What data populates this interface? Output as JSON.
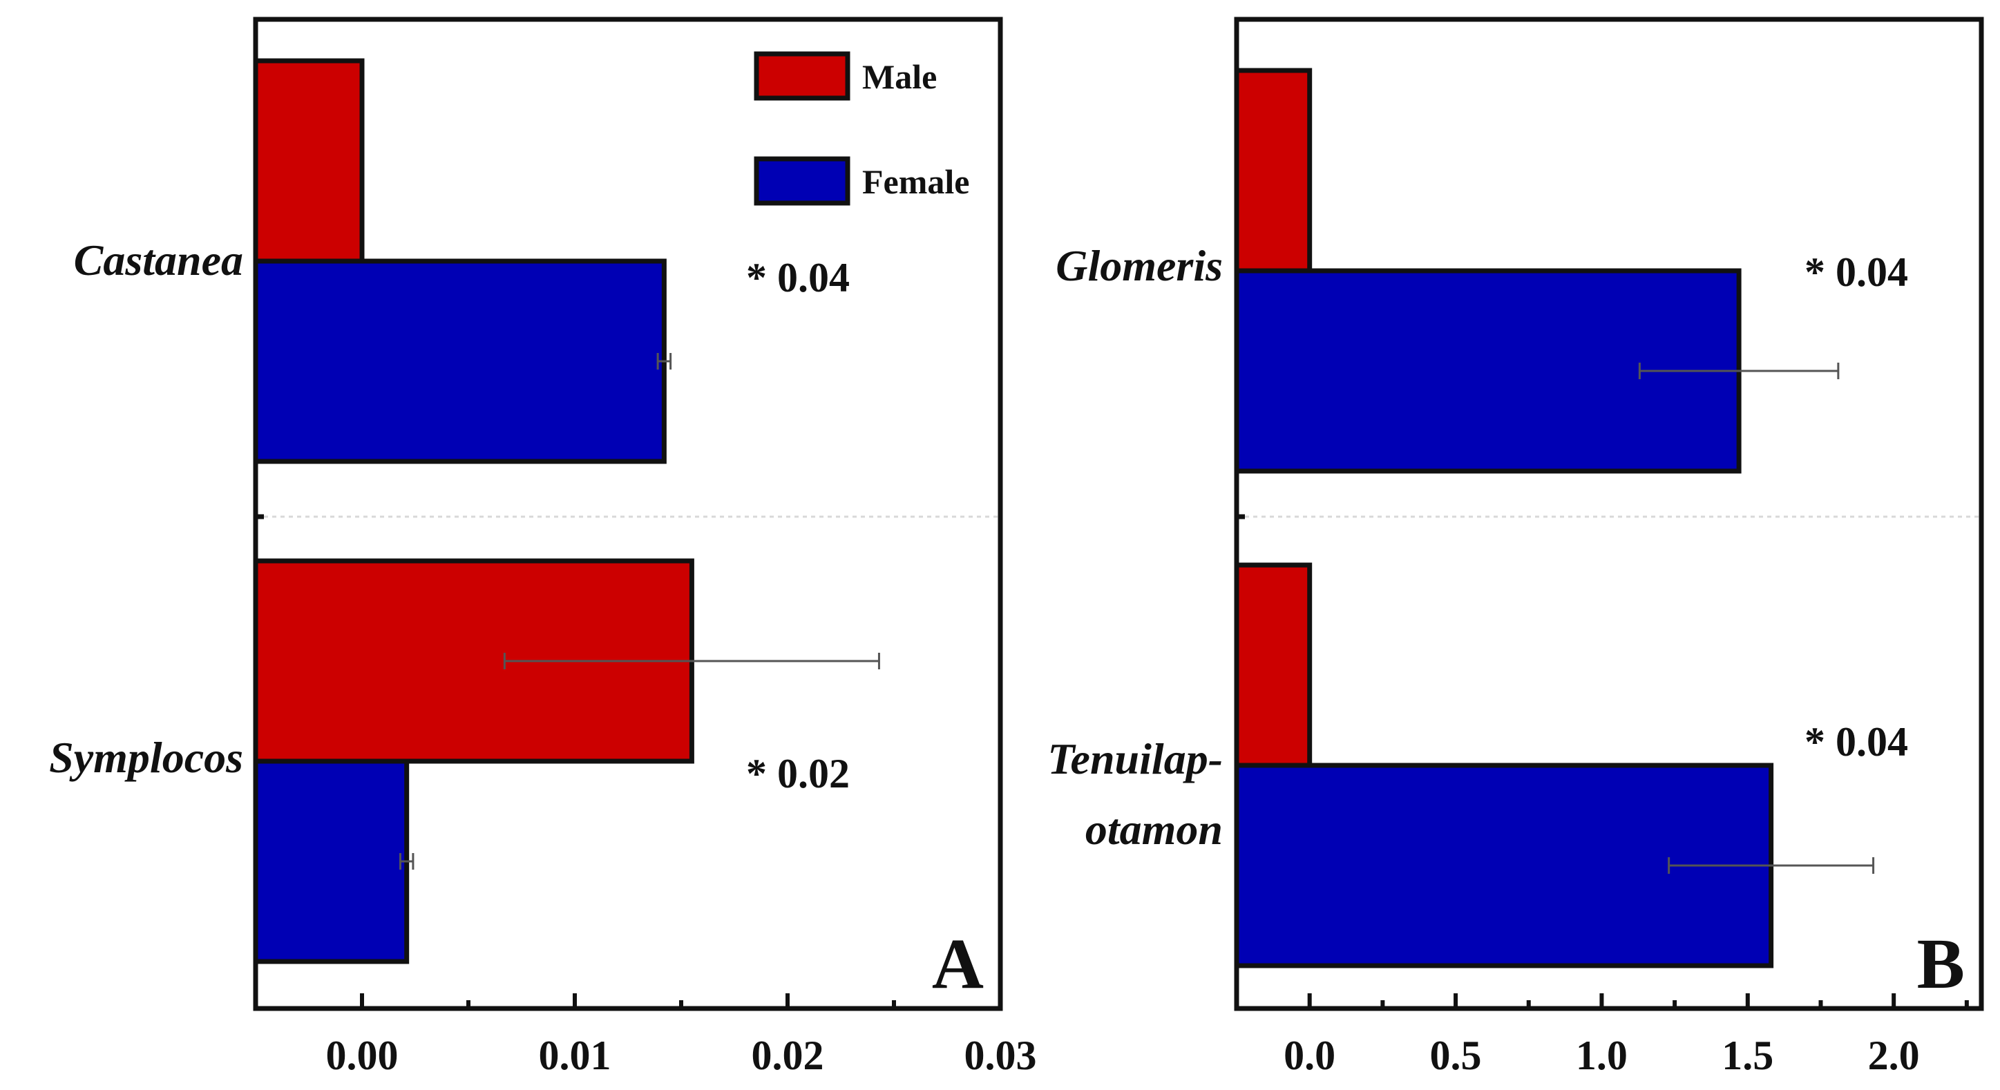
{
  "chart_data": [
    {
      "type": "bar",
      "orientation": "horizontal",
      "panel_label": "A",
      "categories": [
        "Castanea",
        "Symplocos"
      ],
      "series": [
        {
          "name": "Male",
          "color": "#cc0000",
          "values": [
            0.0,
            0.0155
          ],
          "errors": [
            0.0,
            0.0088
          ]
        },
        {
          "name": "Female",
          "color": "#0000b4",
          "values": [
            0.0142,
            0.0021
          ],
          "errors": [
            0.0003,
            0.0003
          ]
        }
      ],
      "annotations": [
        "* 0.04",
        "* 0.02"
      ],
      "xlim": [
        -0.005,
        0.03
      ],
      "xticks": [
        0.0,
        0.01,
        0.02,
        0.03
      ],
      "xtick_labels": [
        "0.00",
        "0.01",
        "0.02",
        "0.03"
      ],
      "xlabel": "",
      "ylabel": "",
      "legend": {
        "position": "top-right",
        "entries": [
          "Male",
          "Female"
        ]
      }
    },
    {
      "type": "bar",
      "orientation": "horizontal",
      "panel_label": "B",
      "categories": [
        "Glomeris",
        "Tenuilap-otamon"
      ],
      "category_lines": [
        [
          "Glomeris"
        ],
        [
          "Tenuilap-",
          "otamon"
        ]
      ],
      "series": [
        {
          "name": "Male",
          "color": "#cc0000",
          "values": [
            0.0,
            0.0
          ],
          "errors": [
            0.0,
            0.0
          ]
        },
        {
          "name": "Female",
          "color": "#0000b4",
          "values": [
            1.47,
            1.58
          ],
          "errors": [
            0.34,
            0.35
          ]
        }
      ],
      "annotations": [
        "* 0.04",
        "* 0.04"
      ],
      "xlim": [
        -0.25,
        2.3
      ],
      "xticks": [
        0.0,
        0.5,
        1.0,
        1.5,
        2.0
      ],
      "xtick_labels": [
        "0.0",
        "0.5",
        "1.0",
        "1.5",
        "2.0"
      ],
      "xlabel": "",
      "ylabel": ""
    }
  ]
}
